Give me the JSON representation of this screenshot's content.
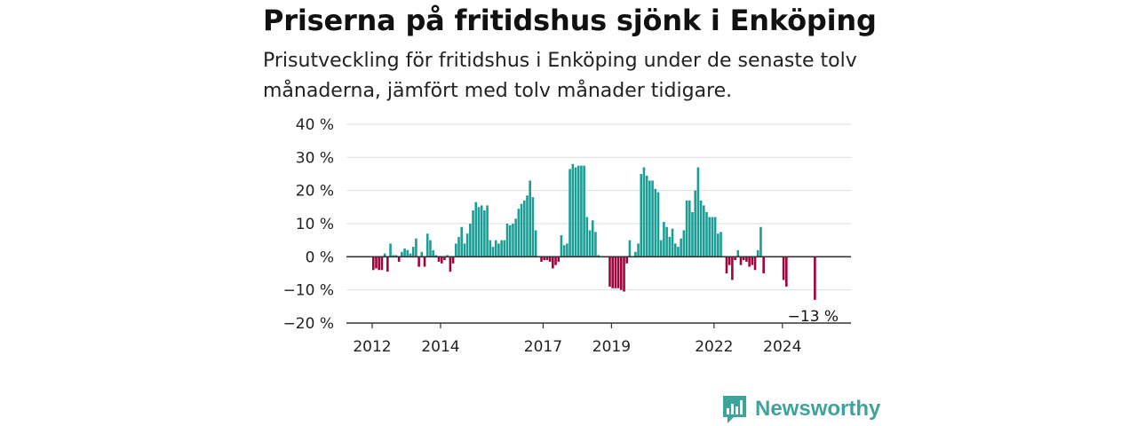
{
  "header": {
    "title": "Priserna på fritidshus sjönk i Enköping",
    "subtitle": "Prisutveckling för fritidshus i Enköping under de senaste tolv månaderna, jämfört med tolv månader tidigare."
  },
  "brand": {
    "name": "Newsworthy",
    "icon": "newsworthy-chart-bubble-icon",
    "color": "#3ea49b"
  },
  "colors": {
    "positive": "#1b9e96",
    "negative": "#a0043e",
    "grid": "#dddddd",
    "zero": "#333333"
  },
  "chart_data": {
    "type": "bar",
    "x_start": "2012-01",
    "interval": "month",
    "ylim": [
      -20,
      40
    ],
    "y_ticks": [
      40,
      30,
      20,
      10,
      0,
      -10,
      -20
    ],
    "y_tick_labels": [
      "40 %",
      "30 %",
      "20 %",
      "10 %",
      "0 %",
      "−10 %",
      "−20 %"
    ],
    "x_tick_labels": [
      {
        "label": "2012",
        "month": 0
      },
      {
        "label": "2014",
        "month": 24
      },
      {
        "label": "2017",
        "month": 60
      },
      {
        "label": "2019",
        "month": 84
      },
      {
        "label": "2022",
        "month": 120
      },
      {
        "label": "2024",
        "month": 144
      }
    ],
    "last_value_label": "−13 %",
    "values": [
      -4,
      -3.5,
      -4,
      -4,
      1,
      -4.5,
      4,
      0.5,
      0.5,
      -1.5,
      1.5,
      2.5,
      2,
      1,
      3,
      5.5,
      -3,
      1.5,
      -3,
      7,
      5,
      2,
      0.5,
      -1.5,
      -2,
      -1,
      0.5,
      -4.5,
      -2,
      4,
      6,
      9,
      4,
      7,
      10,
      14,
      16.5,
      15,
      15.5,
      14,
      15.5,
      5,
      3,
      5,
      4,
      5,
      5,
      10,
      9.5,
      10,
      11.5,
      14.5,
      16,
      17,
      18.5,
      23,
      18,
      8,
      0,
      -1.5,
      -1,
      -1,
      -1.5,
      -3.5,
      -2.5,
      -1.5,
      6.5,
      3.5,
      4,
      26.5,
      28,
      27,
      27.5,
      27.5,
      27.5,
      12,
      8,
      11,
      7.5,
      0.5,
      null,
      null,
      null,
      -9,
      -9.5,
      -9.5,
      -9.5,
      -10,
      -10.5,
      -2,
      5,
      null,
      1.5,
      4,
      25,
      27,
      24.5,
      23,
      23,
      20.5,
      19.5,
      5,
      10.5,
      9,
      6,
      8.5,
      4,
      3,
      5.5,
      8,
      17,
      17,
      13.5,
      20,
      27,
      17,
      15.5,
      13.5,
      12,
      12,
      12,
      7,
      7.5,
      null,
      -5,
      -2.5,
      -7,
      -1,
      2,
      -2.5,
      -1,
      -1.5,
      -3,
      -2.5,
      -4,
      2,
      9,
      -5,
      null,
      null,
      null,
      null,
      null,
      null,
      -7,
      -9,
      null,
      null,
      null,
      null,
      null,
      null,
      null,
      null,
      null,
      -13
    ]
  }
}
